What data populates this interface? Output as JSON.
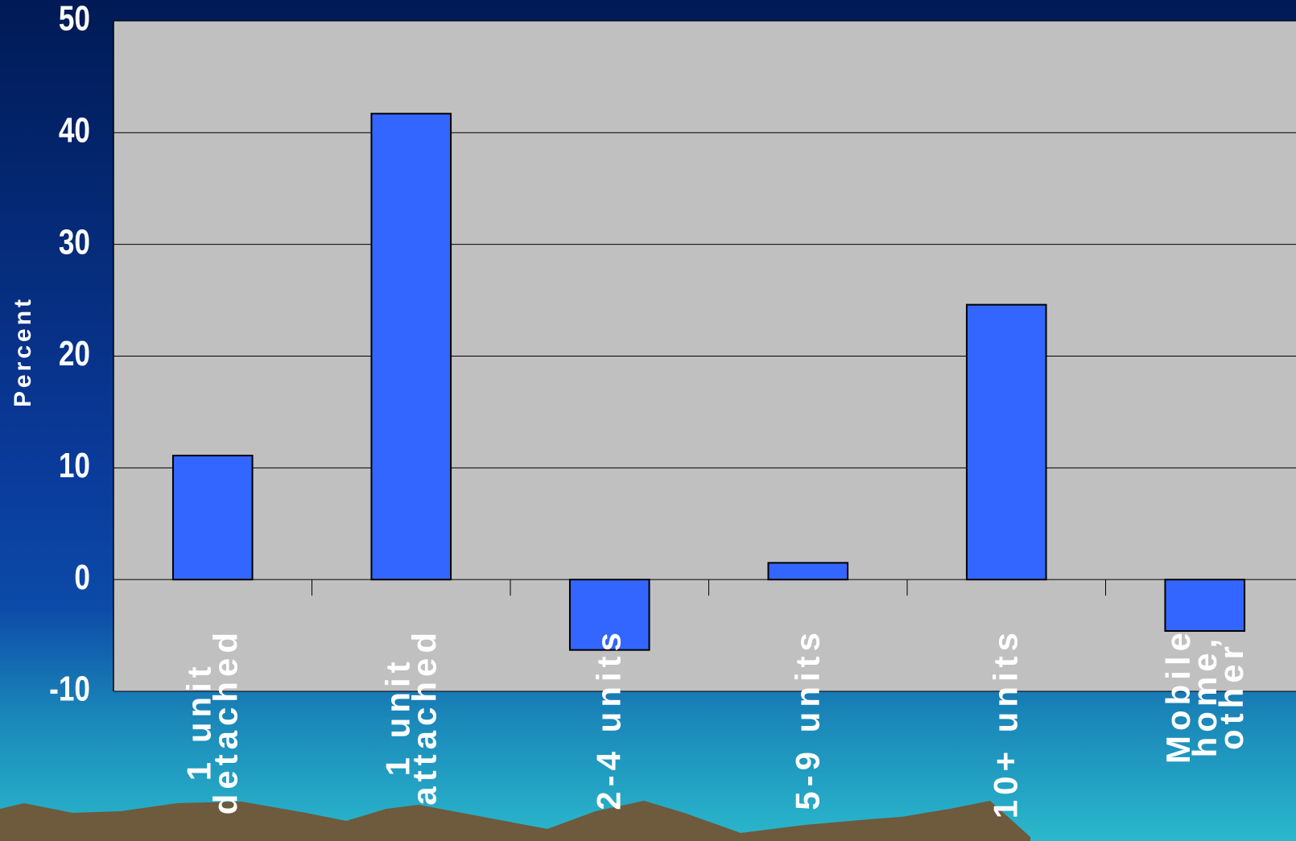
{
  "chart_data": {
    "type": "bar",
    "y_label": "Percent",
    "categories": [
      "1 unit\ndetached",
      "1 unit\nattached",
      "2-4 units",
      "5-9 units",
      "10+ units",
      "Mobile\nhome,\nother"
    ],
    "values": [
      11.1,
      41.7,
      -6.3,
      1.5,
      24.6,
      -4.6
    ],
    "color": "#3366ff",
    "ylim": [
      -10,
      50
    ],
    "yticks": [
      -10,
      0,
      10,
      20,
      30,
      40,
      50
    ],
    "grid": true
  }
}
